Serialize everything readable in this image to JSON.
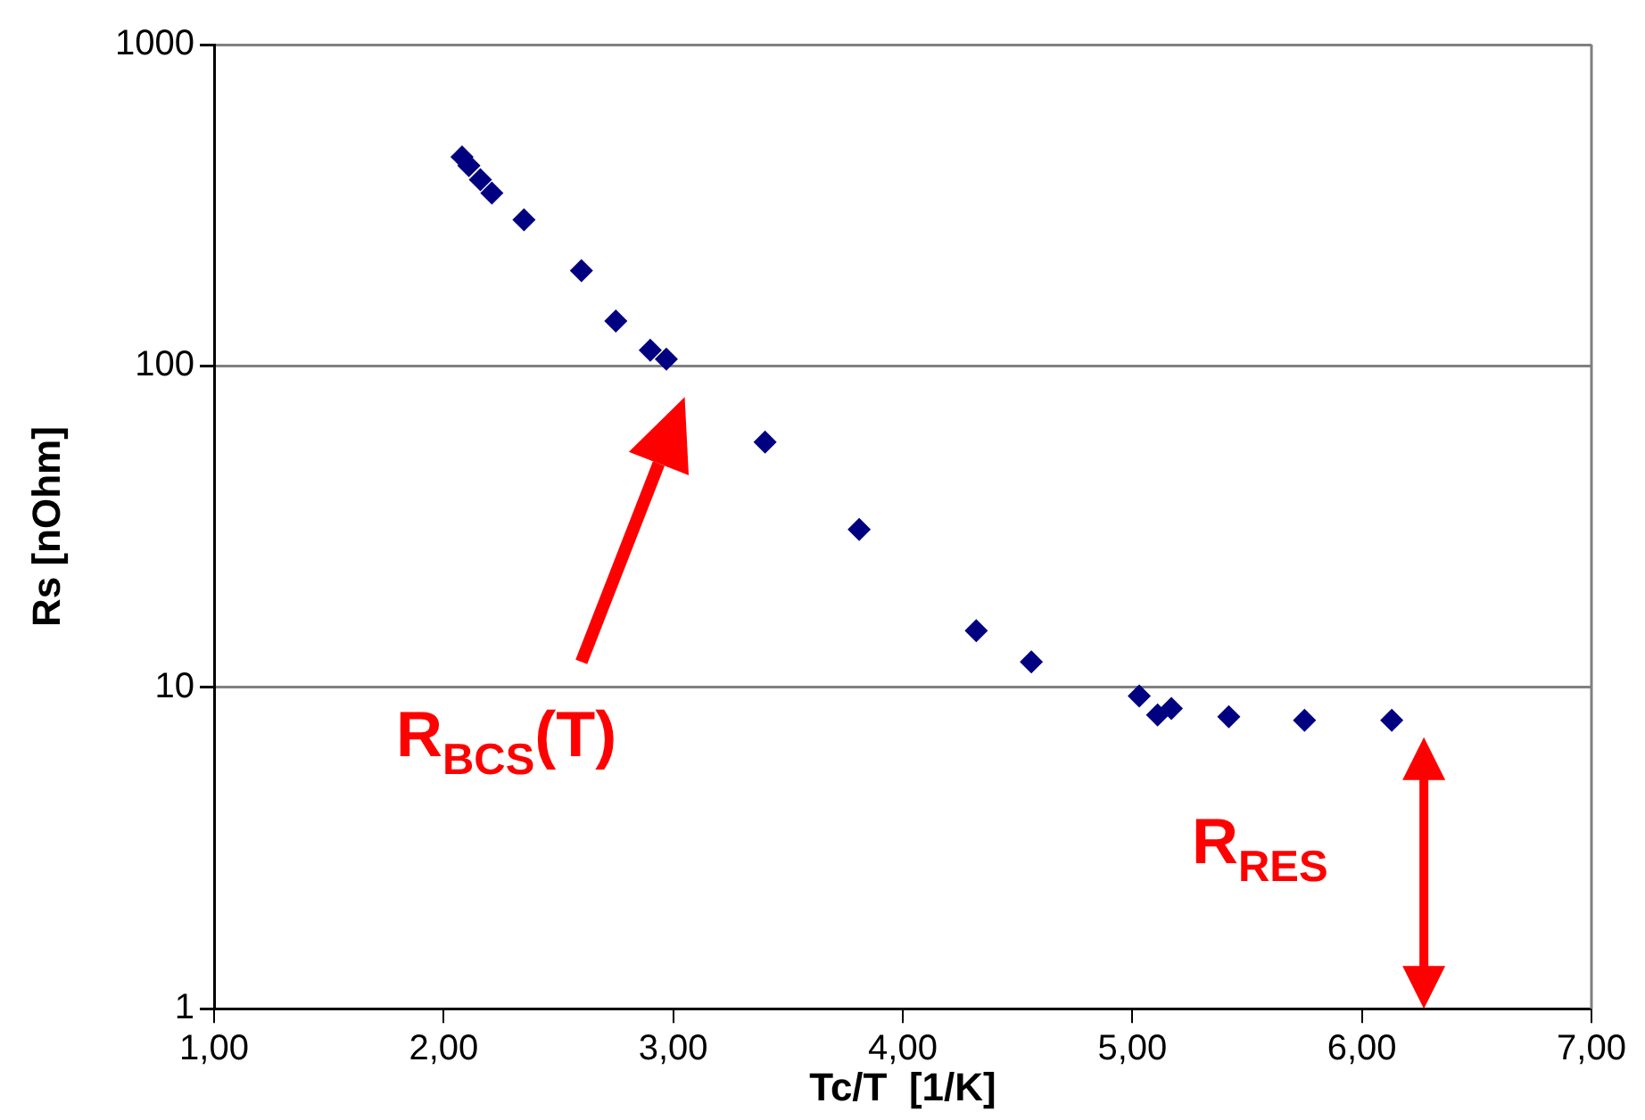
{
  "chart_data": {
    "type": "scatter",
    "xlabel": "Tc/T  [1/K]",
    "ylabel": "Rs [nOhm]",
    "x": [
      2.08,
      2.11,
      2.16,
      2.21,
      2.35,
      2.6,
      2.75,
      2.9,
      2.97,
      3.4,
      3.81,
      4.32,
      4.56,
      5.03,
      5.11,
      5.17,
      5.42,
      5.75,
      6.13
    ],
    "series": [
      {
        "color": "#000080",
        "values": [
          447,
          420,
          380,
          345,
          285,
          198,
          138,
          112,
          105,
          58,
          31,
          15,
          12,
          9.4,
          8.2,
          8.6,
          8.1,
          7.9,
          7.9
        ]
      }
    ],
    "xlim": [
      1,
      7
    ],
    "ylim": [
      1,
      1000
    ],
    "xticks": [
      {
        "value": 1,
        "label": "1,00"
      },
      {
        "value": 2,
        "label": "2,00"
      },
      {
        "value": 3,
        "label": "3,00"
      },
      {
        "value": 4,
        "label": "4,00"
      },
      {
        "value": 5,
        "label": "5,00"
      },
      {
        "value": 6,
        "label": "6,00"
      },
      {
        "value": 7,
        "label": "7,00"
      }
    ],
    "yticks": [
      1,
      10,
      100,
      1000
    ],
    "log": "y",
    "grid": "y",
    "legend": false,
    "marker": "diamond",
    "annotations": [
      "R$_{BCS}$(T)",
      "R$_{RES}$"
    ]
  }
}
